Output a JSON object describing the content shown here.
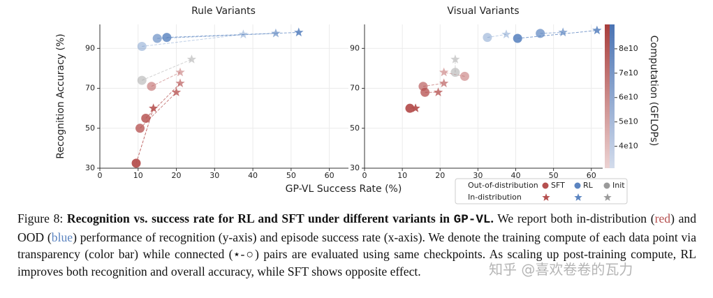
{
  "chart_data": [
    {
      "type": "scatter",
      "title": "Rule Variants",
      "ylabel": "Recognition Accuracy (%)",
      "xlabel": "GP-VL Success Rate (%)",
      "xlim": [
        0,
        65
      ],
      "ylim": [
        30,
        102
      ],
      "xticks": [
        0,
        10,
        20,
        30,
        40,
        50,
        60
      ],
      "yticks": [
        30,
        50,
        70,
        90
      ],
      "grid": true,
      "series": [
        {
          "name": "SFT",
          "color": "#b5504f",
          "x": [
            9.5,
            10.5,
            12,
            13.5
          ],
          "values": [
            32.5,
            50,
            55,
            71
          ],
          "compute": [
            85000000000,
            70000000000,
            75000000000,
            50000000000
          ],
          "x_id": [
            14,
            20,
            21,
            21
          ],
          "values_id": [
            60,
            68,
            72.5,
            78
          ],
          "compute_id": [
            80000000000,
            70000000000,
            60000000000,
            45000000000
          ]
        },
        {
          "name": "RL",
          "color": "#5b84c0",
          "x": [
            11,
            15,
            17.5
          ],
          "values": [
            91,
            95,
            95.5
          ],
          "compute": [
            40000000000,
            60000000000,
            75000000000
          ],
          "x_id": [
            37.5,
            46,
            52
          ],
          "values_id": [
            97,
            97.5,
            98
          ],
          "compute_id": [
            40000000000,
            60000000000,
            80000000000
          ]
        },
        {
          "name": "Init",
          "color": "#9a9a9a",
          "x": [
            11
          ],
          "values": [
            74
          ],
          "compute": [
            45000000000
          ],
          "x_id": [
            24
          ],
          "values_id": [
            84.5
          ],
          "compute_id": [
            45000000000
          ]
        }
      ]
    },
    {
      "type": "scatter",
      "title": "Visual Variants",
      "xlim": [
        0,
        63
      ],
      "ylim": [
        30,
        102
      ],
      "xticks": [
        0,
        10,
        20,
        30,
        40,
        50,
        60
      ],
      "yticks": [
        30,
        50,
        70,
        90
      ],
      "grid": true,
      "series": [
        {
          "name": "SFT",
          "color": "#b5504f",
          "x": [
            12,
            16,
            15.5,
            26.5
          ],
          "values": [
            60,
            68,
            71,
            76
          ],
          "compute": [
            85000000000,
            70000000000,
            60000000000,
            45000000000
          ],
          "x_id": [
            13.5,
            19.5,
            21,
            21
          ],
          "values_id": [
            60,
            68,
            72.5,
            78
          ],
          "compute_id": [
            85000000000,
            70000000000,
            60000000000,
            45000000000
          ]
        },
        {
          "name": "RL",
          "color": "#5b84c0",
          "x": [
            32.5,
            40.5,
            46.5
          ],
          "values": [
            95.5,
            95,
            97.5
          ],
          "compute": [
            40000000000,
            80000000000,
            65000000000
          ],
          "x_id": [
            37.5,
            61.5,
            52.5
          ],
          "values_id": [
            97,
            99,
            98
          ],
          "compute_id": [
            40000000000,
            80000000000,
            65000000000
          ]
        },
        {
          "name": "Init",
          "color": "#9a9a9a",
          "x": [
            24
          ],
          "values": [
            78
          ],
          "compute": [
            45000000000
          ],
          "x_id": [
            24
          ],
          "values_id": [
            84.5
          ],
          "compute_id": [
            45000000000
          ]
        }
      ]
    }
  ],
  "colorbar": {
    "label": "Computation (GFLOPs)",
    "lim": [
      31000000000,
      90000000000
    ],
    "ticks": [
      {
        "value": 40000000000,
        "label": "4e10"
      },
      {
        "value": 50000000000,
        "label": "5e10"
      },
      {
        "value": 60000000000,
        "label": "6e10"
      },
      {
        "value": 70000000000,
        "label": "7e10"
      },
      {
        "value": 80000000000,
        "label": "8e10"
      }
    ]
  },
  "legend": {
    "rows": [
      "Out-of-distribution",
      "In-distribution"
    ]
  },
  "caption": {
    "label": "Figure 8:",
    "bold": "Recognition vs.  success rate for RL and SFT under different variants in",
    "code": "GP-VL",
    "bold_end": ".",
    "text1": "We report both in-distribution (",
    "red": "red",
    "text2": ") and OOD (",
    "blue": "blue",
    "text3": ") performance of recognition (y-axis) and episode success rate (x-axis). We denote the training compute of each data point via transparency (color bar) while connected (⋆-○) pairs are evaluated using same checkpoints. As scaling up post-training compute, RL improves both recognition and overall accuracy, while SFT shows opposite effect."
  },
  "watermark": "知乎 @喜欢卷卷的瓦力"
}
